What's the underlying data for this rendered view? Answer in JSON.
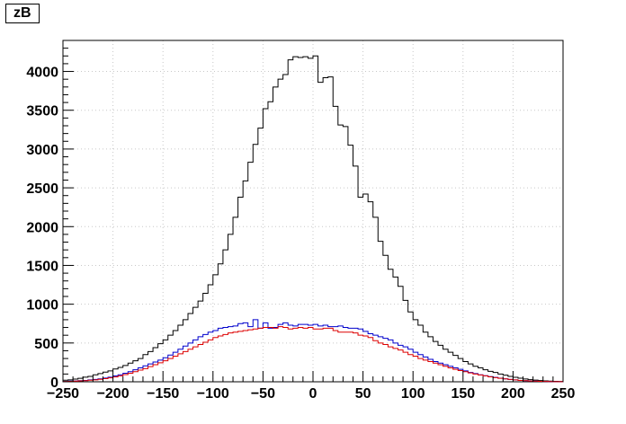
{
  "chart_data": {
    "type": "line",
    "title": "zB",
    "xlabel": "",
    "ylabel": "",
    "xlim": [
      -250,
      250
    ],
    "ylim": [
      0,
      4400
    ],
    "grid": true,
    "bin_width": 5,
    "x_ticks": [
      "−250",
      "−200",
      "−150",
      "−100",
      "−50",
      "0",
      "50",
      "100",
      "150",
      "200",
      "250"
    ],
    "y_ticks": [
      "0",
      "500",
      "1000",
      "1500",
      "2000",
      "2500",
      "3000",
      "3500",
      "4000"
    ],
    "x": [
      -247.5,
      -242.5,
      -237.5,
      -232.5,
      -227.5,
      -222.5,
      -217.5,
      -212.5,
      -207.5,
      -202.5,
      -197.5,
      -192.5,
      -187.5,
      -182.5,
      -177.5,
      -172.5,
      -167.5,
      -162.5,
      -157.5,
      -152.5,
      -147.5,
      -142.5,
      -137.5,
      -132.5,
      -127.5,
      -122.5,
      -117.5,
      -112.5,
      -107.5,
      -102.5,
      -97.5,
      -92.5,
      -87.5,
      -82.5,
      -77.5,
      -72.5,
      -67.5,
      -62.5,
      -57.5,
      -52.5,
      -47.5,
      -42.5,
      -37.5,
      -32.5,
      -27.5,
      -22.5,
      -17.5,
      -12.5,
      -7.5,
      -2.5,
      2.5,
      7.5,
      12.5,
      17.5,
      22.5,
      27.5,
      32.5,
      37.5,
      42.5,
      47.5,
      52.5,
      57.5,
      62.5,
      67.5,
      72.5,
      77.5,
      82.5,
      87.5,
      92.5,
      97.5,
      102.5,
      107.5,
      112.5,
      117.5,
      122.5,
      127.5,
      132.5,
      137.5,
      142.5,
      147.5,
      152.5,
      157.5,
      162.5,
      167.5,
      172.5,
      177.5,
      182.5,
      187.5,
      192.5,
      197.5,
      202.5,
      207.5,
      212.5,
      217.5,
      222.5,
      227.5,
      232.5,
      237.5,
      242.5,
      247.5
    ],
    "series": [
      {
        "color": "#000000",
        "values": [
          20,
          25,
          35,
          45,
          60,
          70,
          90,
          105,
          125,
          140,
          165,
          185,
          210,
          240,
          270,
          300,
          350,
          390,
          440,
          490,
          540,
          600,
          660,
          730,
          800,
          880,
          960,
          1040,
          1140,
          1250,
          1380,
          1520,
          1700,
          1900,
          2120,
          2380,
          2590,
          2830,
          3060,
          3270,
          3520,
          3610,
          3800,
          3900,
          3960,
          4150,
          4190,
          4180,
          4190,
          4170,
          4200,
          3860,
          3920,
          3930,
          3550,
          3310,
          3290,
          3050,
          2780,
          2380,
          2420,
          2320,
          2120,
          1810,
          1630,
          1450,
          1350,
          1230,
          1050,
          900,
          800,
          730,
          640,
          580,
          520,
          470,
          420,
          380,
          340,
          300,
          260,
          230,
          200,
          180,
          155,
          135,
          120,
          100,
          85,
          70,
          58,
          46,
          36,
          28,
          22,
          16,
          12,
          8,
          6,
          4
        ]
      },
      {
        "color": "#0000cc",
        "values": [
          5,
          8,
          10,
          14,
          18,
          24,
          30,
          38,
          48,
          60,
          75,
          90,
          110,
          130,
          155,
          180,
          205,
          230,
          255,
          280,
          310,
          345,
          380,
          420,
          460,
          500,
          540,
          580,
          610,
          640,
          660,
          690,
          700,
          710,
          720,
          750,
          760,
          710,
          800,
          690,
          760,
          690,
          700,
          740,
          760,
          730,
          720,
          740,
          740,
          730,
          740,
          720,
          730,
          710,
          710,
          720,
          700,
          690,
          690,
          680,
          650,
          620,
          600,
          580,
          560,
          540,
          500,
          470,
          450,
          420,
          380,
          350,
          320,
          290,
          260,
          240,
          220,
          200,
          180,
          160,
          140,
          120,
          105,
          90,
          78,
          66,
          56,
          46,
          38,
          30,
          24,
          18,
          14,
          10,
          8,
          6,
          4,
          3,
          2,
          2
        ]
      },
      {
        "color": "#dd0000",
        "values": [
          4,
          6,
          8,
          11,
          15,
          20,
          25,
          32,
          40,
          50,
          62,
          76,
          92,
          110,
          130,
          150,
          170,
          195,
          220,
          245,
          270,
          300,
          330,
          360,
          390,
          420,
          450,
          480,
          510,
          540,
          570,
          590,
          610,
          630,
          640,
          650,
          660,
          670,
          680,
          690,
          700,
          700,
          690,
          710,
          700,
          680,
          690,
          700,
          690,
          700,
          680,
          680,
          690,
          690,
          660,
          640,
          640,
          640,
          630,
          600,
          590,
          570,
          530,
          500,
          480,
          450,
          430,
          410,
          380,
          350,
          330,
          300,
          280,
          260,
          240,
          220,
          200,
          180,
          160,
          145,
          130,
          115,
          100,
          88,
          76,
          64,
          54,
          45,
          37,
          30,
          24,
          18,
          14,
          10,
          8,
          6,
          4,
          3,
          2,
          2
        ]
      }
    ]
  }
}
